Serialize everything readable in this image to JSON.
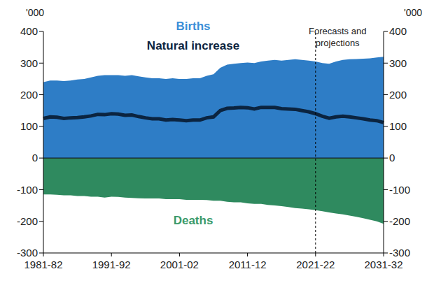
{
  "chart_data": {
    "type": "area",
    "categories": [
      "1981-82",
      null,
      null,
      null,
      null,
      null,
      null,
      null,
      null,
      null,
      "1991-92",
      null,
      null,
      null,
      null,
      null,
      null,
      null,
      null,
      null,
      "2001-02",
      null,
      null,
      null,
      null,
      null,
      null,
      null,
      null,
      null,
      "2011-12",
      null,
      null,
      null,
      null,
      null,
      null,
      null,
      null,
      null,
      "2021-22",
      null,
      null,
      null,
      null,
      null,
      null,
      null,
      null,
      null,
      "2031-32"
    ],
    "series": [
      {
        "name": "Births",
        "type": "area",
        "color": "#2e7dc6",
        "values": [
          240,
          245,
          245,
          243,
          245,
          248,
          250,
          255,
          260,
          262,
          262,
          262,
          260,
          262,
          258,
          255,
          252,
          252,
          250,
          252,
          250,
          250,
          252,
          252,
          260,
          265,
          285,
          295,
          298,
          300,
          302,
          300,
          305,
          308,
          310,
          308,
          310,
          312,
          310,
          308,
          305,
          300,
          298,
          305,
          310,
          312,
          313,
          314,
          315,
          318,
          320
        ]
      },
      {
        "name": "Deaths",
        "type": "area",
        "color": "#2f8a5f",
        "values": [
          -115,
          -115,
          -116,
          -118,
          -118,
          -120,
          -120,
          -122,
          -122,
          -125,
          -122,
          -123,
          -125,
          -126,
          -127,
          -128,
          -128,
          -128,
          -130,
          -130,
          -130,
          -132,
          -132,
          -132,
          -133,
          -135,
          -135,
          -138,
          -140,
          -140,
          -143,
          -145,
          -145,
          -148,
          -150,
          -152,
          -155,
          -158,
          -160,
          -162,
          -165,
          -168,
          -172,
          -175,
          -178,
          -182,
          -186,
          -190,
          -195,
          -200,
          -208
        ]
      },
      {
        "name": "Natural increase",
        "type": "line",
        "color": "#0b2440",
        "values": [
          125,
          130,
          129,
          125,
          127,
          128,
          130,
          133,
          138,
          137,
          140,
          139,
          135,
          136,
          131,
          127,
          124,
          124,
          120,
          122,
          120,
          118,
          120,
          120,
          127,
          130,
          150,
          157,
          158,
          160,
          159,
          155,
          160,
          160,
          160,
          156,
          155,
          154,
          150,
          146,
          140,
          132,
          126,
          130,
          132,
          130,
          127,
          124,
          120,
          118,
          112
        ]
      }
    ],
    "ylim": [
      -300,
      400
    ],
    "yticks": [
      -300,
      -200,
      -100,
      0,
      100,
      200,
      300,
      400
    ],
    "y2lim": [
      -300,
      400
    ],
    "y2ticks": [
      -300,
      -200,
      -100,
      0,
      100,
      200,
      300,
      400
    ],
    "y_label": "'000",
    "y2_label": "'000",
    "annotations": [
      {
        "text": "Forecasts and\nprojections",
        "x": "2021-22"
      }
    ]
  }
}
